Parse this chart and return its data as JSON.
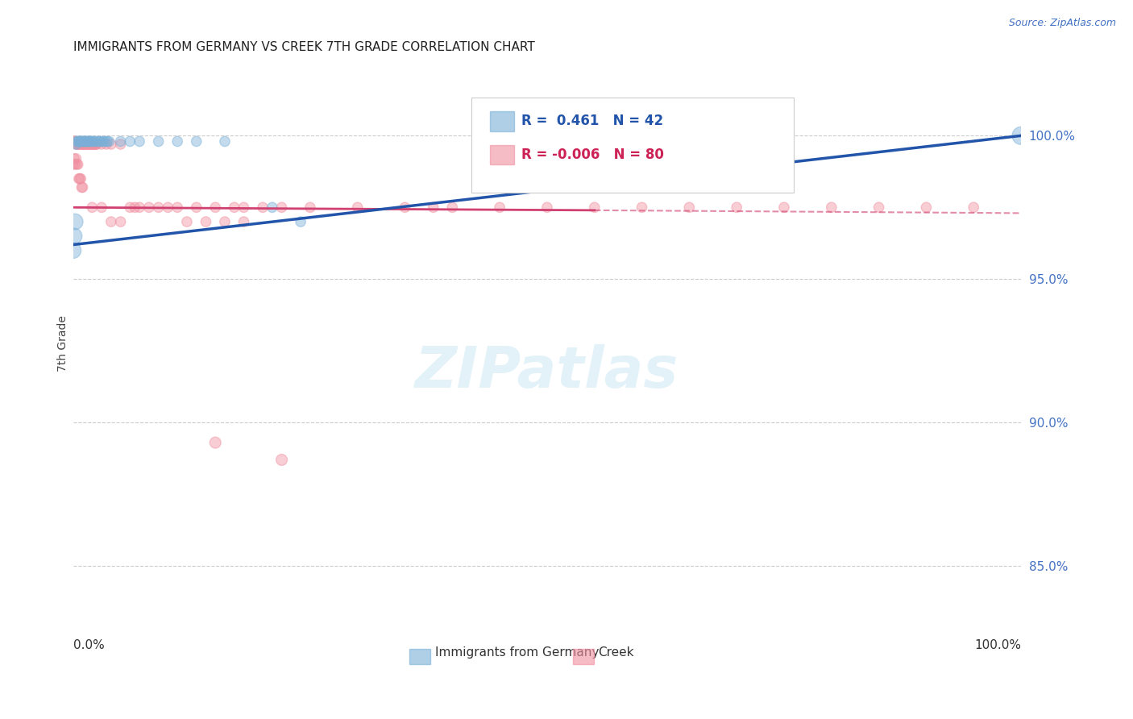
{
  "title": "IMMIGRANTS FROM GERMANY VS CREEK 7TH GRADE CORRELATION CHART",
  "source": "Source: ZipAtlas.com",
  "ylabel": "7th Grade",
  "ytick_labels": [
    "100.0%",
    "95.0%",
    "90.0%",
    "85.0%"
  ],
  "ytick_values": [
    1.0,
    0.95,
    0.9,
    0.85
  ],
  "xlim": [
    0.0,
    1.0
  ],
  "ylim": [
    0.83,
    1.025
  ],
  "legend1_text": "R =  0.461   N = 42",
  "legend2_text": "R = -0.006   N = 80",
  "blue_color": "#7ab0d8",
  "pink_color": "#f090a0",
  "blue_line_color": "#2255aa",
  "pink_line_color": "#d04070",
  "germany_label": "Immigrants from Germany",
  "creek_label": "Creek",
  "germany_scatter": [
    [
      0.003,
      0.997
    ],
    [
      0.004,
      0.998
    ],
    [
      0.005,
      0.998
    ],
    [
      0.006,
      0.998
    ],
    [
      0.007,
      0.998
    ],
    [
      0.008,
      0.998
    ],
    [
      0.009,
      0.998
    ],
    [
      0.01,
      0.998
    ],
    [
      0.011,
      0.998
    ],
    [
      0.012,
      0.998
    ],
    [
      0.013,
      0.998
    ],
    [
      0.014,
      0.998
    ],
    [
      0.015,
      0.998
    ],
    [
      0.016,
      0.998
    ],
    [
      0.017,
      0.998
    ],
    [
      0.018,
      0.998
    ],
    [
      0.019,
      0.998
    ],
    [
      0.02,
      0.998
    ],
    [
      0.022,
      0.998
    ],
    [
      0.024,
      0.998
    ],
    [
      0.026,
      0.998
    ],
    [
      0.028,
      0.998
    ],
    [
      0.03,
      0.998
    ],
    [
      0.032,
      0.998
    ],
    [
      0.034,
      0.998
    ],
    [
      0.036,
      0.998
    ],
    [
      0.038,
      0.998
    ],
    [
      0.05,
      0.998
    ],
    [
      0.06,
      0.998
    ],
    [
      0.07,
      0.998
    ],
    [
      0.09,
      0.998
    ],
    [
      0.11,
      0.998
    ],
    [
      0.13,
      0.998
    ],
    [
      0.16,
      0.998
    ],
    [
      0.21,
      0.975
    ],
    [
      0.55,
      0.998
    ],
    [
      0.72,
      0.998
    ],
    [
      1.0,
      1.0
    ],
    [
      0.0,
      0.96
    ],
    [
      0.002,
      0.97
    ],
    [
      0.001,
      0.965
    ],
    [
      0.24,
      0.97
    ]
  ],
  "germany_sizes": [
    80,
    80,
    80,
    80,
    80,
    80,
    80,
    80,
    80,
    80,
    80,
    80,
    80,
    80,
    80,
    80,
    80,
    80,
    80,
    80,
    80,
    80,
    80,
    80,
    80,
    80,
    80,
    80,
    80,
    80,
    80,
    80,
    80,
    80,
    80,
    80,
    80,
    250,
    200,
    200,
    200,
    80
  ],
  "creek_scatter": [
    [
      0.0,
      0.998
    ],
    [
      0.001,
      0.998
    ],
    [
      0.002,
      0.998
    ],
    [
      0.003,
      0.997
    ],
    [
      0.004,
      0.997
    ],
    [
      0.005,
      0.997
    ],
    [
      0.006,
      0.997
    ],
    [
      0.007,
      0.997
    ],
    [
      0.008,
      0.997
    ],
    [
      0.009,
      0.997
    ],
    [
      0.01,
      0.997
    ],
    [
      0.011,
      0.997
    ],
    [
      0.012,
      0.997
    ],
    [
      0.013,
      0.997
    ],
    [
      0.014,
      0.997
    ],
    [
      0.015,
      0.997
    ],
    [
      0.016,
      0.997
    ],
    [
      0.017,
      0.997
    ],
    [
      0.018,
      0.997
    ],
    [
      0.019,
      0.997
    ],
    [
      0.02,
      0.997
    ],
    [
      0.021,
      0.997
    ],
    [
      0.022,
      0.997
    ],
    [
      0.023,
      0.997
    ],
    [
      0.024,
      0.997
    ],
    [
      0.025,
      0.997
    ],
    [
      0.03,
      0.997
    ],
    [
      0.035,
      0.997
    ],
    [
      0.04,
      0.997
    ],
    [
      0.05,
      0.997
    ],
    [
      0.06,
      0.975
    ],
    [
      0.065,
      0.975
    ],
    [
      0.07,
      0.975
    ],
    [
      0.08,
      0.975
    ],
    [
      0.09,
      0.975
    ],
    [
      0.1,
      0.975
    ],
    [
      0.11,
      0.975
    ],
    [
      0.13,
      0.975
    ],
    [
      0.15,
      0.975
    ],
    [
      0.17,
      0.975
    ],
    [
      0.18,
      0.975
    ],
    [
      0.2,
      0.975
    ],
    [
      0.22,
      0.975
    ],
    [
      0.25,
      0.975
    ],
    [
      0.3,
      0.975
    ],
    [
      0.35,
      0.975
    ],
    [
      0.38,
      0.975
    ],
    [
      0.4,
      0.975
    ],
    [
      0.45,
      0.975
    ],
    [
      0.5,
      0.975
    ],
    [
      0.55,
      0.975
    ],
    [
      0.6,
      0.975
    ],
    [
      0.65,
      0.975
    ],
    [
      0.7,
      0.975
    ],
    [
      0.75,
      0.975
    ],
    [
      0.8,
      0.975
    ],
    [
      0.85,
      0.975
    ],
    [
      0.9,
      0.975
    ],
    [
      0.95,
      0.975
    ],
    [
      0.0,
      0.99
    ],
    [
      0.001,
      0.992
    ],
    [
      0.002,
      0.99
    ],
    [
      0.003,
      0.992
    ],
    [
      0.004,
      0.99
    ],
    [
      0.005,
      0.99
    ],
    [
      0.006,
      0.985
    ],
    [
      0.007,
      0.985
    ],
    [
      0.008,
      0.985
    ],
    [
      0.009,
      0.982
    ],
    [
      0.01,
      0.982
    ],
    [
      0.02,
      0.975
    ],
    [
      0.03,
      0.975
    ],
    [
      0.04,
      0.97
    ],
    [
      0.05,
      0.97
    ],
    [
      0.12,
      0.97
    ],
    [
      0.14,
      0.97
    ],
    [
      0.16,
      0.97
    ],
    [
      0.18,
      0.97
    ],
    [
      0.15,
      0.893
    ],
    [
      0.22,
      0.887
    ]
  ],
  "creek_sizes": [
    80,
    80,
    80,
    80,
    80,
    80,
    80,
    80,
    80,
    80,
    80,
    80,
    80,
    80,
    80,
    80,
    80,
    80,
    80,
    80,
    80,
    80,
    80,
    80,
    80,
    80,
    80,
    80,
    80,
    80,
    80,
    80,
    80,
    80,
    80,
    80,
    80,
    80,
    80,
    80,
    80,
    80,
    80,
    80,
    80,
    80,
    80,
    80,
    80,
    80,
    80,
    80,
    80,
    80,
    80,
    80,
    80,
    80,
    80,
    80,
    80,
    80,
    80,
    80,
    80,
    80,
    80,
    80,
    80,
    80,
    80,
    80,
    80,
    80,
    80,
    80,
    80,
    80,
    100,
    100
  ],
  "blue_trendline": [
    [
      0.0,
      0.962
    ],
    [
      1.0,
      1.0
    ]
  ],
  "pink_trendline": [
    [
      0.0,
      0.975
    ],
    [
      0.55,
      0.974
    ]
  ],
  "pink_trendline_dash": [
    [
      0.55,
      0.974
    ],
    [
      1.0,
      0.973
    ]
  ]
}
